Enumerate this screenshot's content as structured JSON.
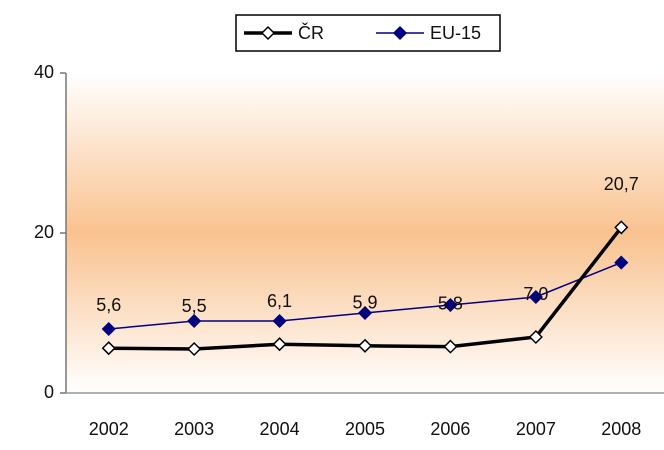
{
  "chart_data": {
    "type": "line",
    "categories": [
      "2002",
      "2003",
      "2004",
      "2005",
      "2006",
      "2007",
      "2008"
    ],
    "series": [
      {
        "name": "ČR",
        "color": "#000000",
        "values": [
          5.6,
          5.5,
          6.1,
          5.9,
          5.8,
          7.0,
          20.7
        ],
        "value_labels": [
          "5,6",
          "5,5",
          "6,1",
          "5,9",
          "5,8",
          "7,0",
          "20,7"
        ]
      },
      {
        "name": "EU-15",
        "color": "#000080",
        "values": [
          8,
          9,
          9,
          10,
          11,
          12,
          16.3
        ]
      }
    ],
    "ylim": [
      0,
      40
    ],
    "yticks": [
      0,
      20,
      40
    ],
    "grid": false,
    "legend": "top"
  }
}
